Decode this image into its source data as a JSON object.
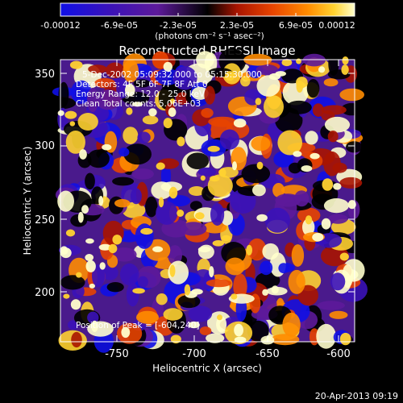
{
  "colorbar": {
    "ticks": [
      "-0.00012",
      "-6.9e-05",
      "-2.3e-05",
      "2.3e-05",
      "6.9e-05",
      "0.00012"
    ],
    "unit": "(photons cm⁻² s⁻¹ asec⁻²)",
    "colors": [
      "#1010e6",
      "#3b12b8",
      "#5d1a9a",
      "#000000",
      "#a81400",
      "#e84400",
      "#ff8c00",
      "#ffd230",
      "#ffffcc"
    ]
  },
  "title": "Reconstructed RHESSI Image",
  "annotations": {
    "time": "5-Dec-2002 05:09:32.000 to 05:15:30.000",
    "detectors": "Detectors: 4F 5F 6F 7F 8F  Att 0",
    "energy": "Energy Range: 12.0 - 25.0 keV",
    "clean": "Clean     Total counts: 5.06E+03",
    "peak": "Position of Peak = [-604,240]"
  },
  "axes": {
    "xlabel": "Heliocentric X (arcsec)",
    "ylabel": "Heliocentric Y (arcsec)",
    "xticks": [
      "-750",
      "-700",
      "-650",
      "-600"
    ],
    "yticks": [
      "350",
      "300",
      "250",
      "200"
    ]
  },
  "footer": "20-Apr-2013 09:19"
}
